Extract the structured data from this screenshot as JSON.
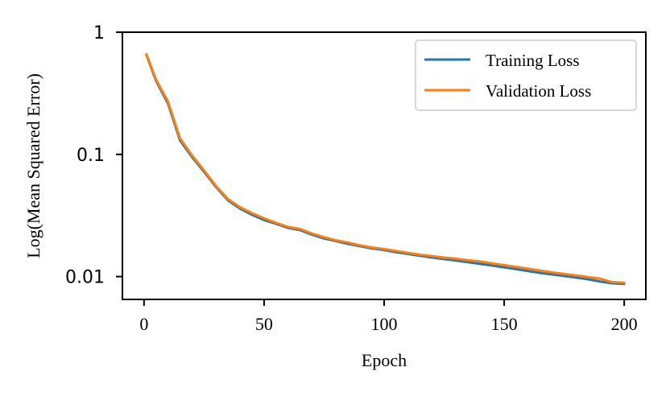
{
  "chart_data": {
    "type": "line",
    "title": "",
    "xlabel": "Epoch",
    "ylabel": "Log(Mean Squared Error)",
    "xlim": [
      -9,
      209
    ],
    "ylim": [
      0.0065,
      1.0
    ],
    "yscale": "log",
    "grid": false,
    "legend_position": "top-right",
    "x_ticks": [
      {
        "value": 0,
        "label": "0"
      },
      {
        "value": 50,
        "label": "50"
      },
      {
        "value": 100,
        "label": "100"
      },
      {
        "value": 150,
        "label": "150"
      },
      {
        "value": 200,
        "label": "200"
      }
    ],
    "y_ticks": [
      {
        "value": 1,
        "label": "1"
      },
      {
        "value": 0.1,
        "label": "0.1"
      },
      {
        "value": 0.01,
        "label": "0.01"
      }
    ],
    "series": [
      {
        "name": "Training Loss",
        "color": "#1f77b4",
        "x": [
          1,
          5,
          10,
          15,
          20,
          25,
          30,
          35,
          40,
          45,
          50,
          55,
          60,
          65,
          70,
          75,
          80,
          85,
          90,
          95,
          100,
          105,
          110,
          115,
          120,
          125,
          130,
          135,
          140,
          145,
          150,
          155,
          160,
          165,
          170,
          175,
          180,
          185,
          190,
          195,
          200
        ],
        "values": [
          0.65,
          0.4,
          0.26,
          0.13,
          0.095,
          0.072,
          0.054,
          0.042,
          0.036,
          0.032,
          0.029,
          0.027,
          0.025,
          0.024,
          0.022,
          0.0205,
          0.0195,
          0.0185,
          0.0177,
          0.017,
          0.0165,
          0.0158,
          0.0153,
          0.0148,
          0.0143,
          0.0139,
          0.0135,
          0.0131,
          0.0127,
          0.0123,
          0.0119,
          0.0115,
          0.0111,
          0.0107,
          0.0104,
          0.0101,
          0.0098,
          0.0095,
          0.0091,
          0.0088,
          0.0087
        ]
      },
      {
        "name": "Validation Loss",
        "color": "#ff7f0e",
        "x": [
          1,
          5,
          10,
          15,
          20,
          25,
          30,
          35,
          40,
          45,
          50,
          55,
          60,
          65,
          70,
          75,
          80,
          85,
          90,
          95,
          100,
          105,
          110,
          115,
          120,
          125,
          130,
          135,
          140,
          145,
          150,
          155,
          160,
          165,
          170,
          175,
          180,
          185,
          190,
          195,
          200
        ],
        "values": [
          0.66,
          0.41,
          0.27,
          0.135,
          0.098,
          0.074,
          0.055,
          0.043,
          0.037,
          0.033,
          0.03,
          0.0275,
          0.0255,
          0.0245,
          0.0225,
          0.021,
          0.0198,
          0.019,
          0.018,
          0.0173,
          0.0168,
          0.0162,
          0.0156,
          0.0151,
          0.0147,
          0.0143,
          0.014,
          0.0136,
          0.0133,
          0.0128,
          0.0124,
          0.012,
          0.0116,
          0.0112,
          0.0108,
          0.0105,
          0.0102,
          0.0099,
          0.0096,
          0.009,
          0.0089
        ]
      }
    ]
  }
}
